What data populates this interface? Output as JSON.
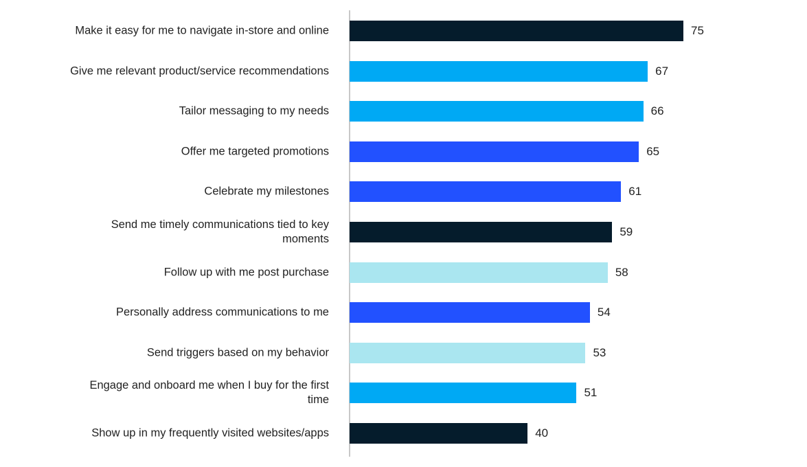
{
  "chart_data": {
    "type": "bar",
    "orientation": "horizontal",
    "categories": [
      "Make it easy for me to navigate in-store and online",
      "Give me relevant product/service recommendations",
      "Tailor messaging to my needs",
      "Offer me targeted promotions",
      "Celebrate my milestones",
      "Send me timely communications tied to key moments",
      "Follow up with me post purchase",
      "Personally address communications to me",
      "Send triggers based on my behavior",
      "Engage and onboard me when I buy for the first time",
      "Show up in my frequently visited websites/apps"
    ],
    "values": [
      75,
      67,
      66,
      65,
      61,
      59,
      58,
      54,
      53,
      51,
      40
    ],
    "bar_colors": [
      "#051c2c",
      "#00a9f4",
      "#00a9f4",
      "#2251ff",
      "#2251ff",
      "#051c2c",
      "#aae6f0",
      "#2251ff",
      "#aae6f0",
      "#00a9f4",
      "#051c2c"
    ],
    "data_labels": true,
    "grid": false,
    "legend": "none"
  }
}
